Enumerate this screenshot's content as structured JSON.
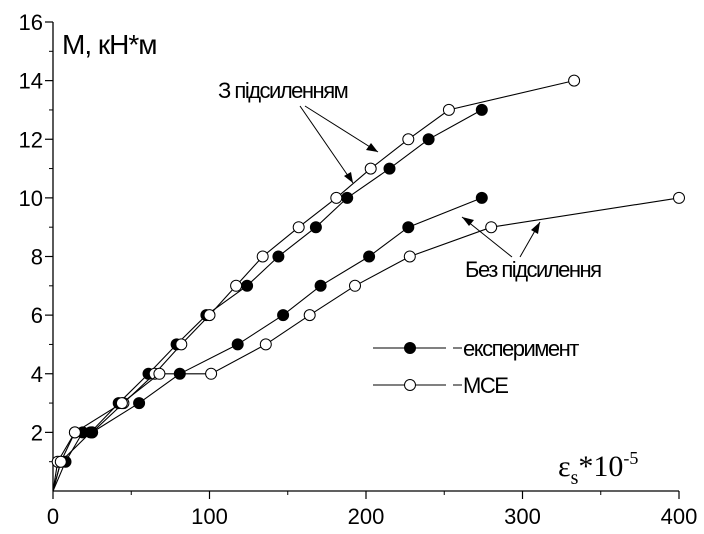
{
  "chart_data": {
    "type": "line",
    "ylabel": "M, кН*м",
    "xlabel": {
      "main": "ε",
      "sub": "s",
      "rest": "*10",
      "sup": "-5"
    },
    "xlim": [
      0,
      400
    ],
    "ylim": [
      0,
      16
    ],
    "xticks": [
      0,
      100,
      200,
      300,
      400
    ],
    "yticks": [
      2,
      4,
      6,
      8,
      10,
      12,
      14,
      16
    ],
    "grid": false,
    "legend_position": "center-right",
    "series": [
      {
        "name": "експеримент",
        "group": "З підсиленням",
        "marker": "filled",
        "points": [
          [
            5,
            1
          ],
          [
            24,
            2
          ],
          [
            42,
            3
          ],
          [
            61,
            4
          ],
          [
            79,
            5
          ],
          [
            98,
            6
          ],
          [
            124,
            7
          ],
          [
            144,
            8
          ],
          [
            168,
            9
          ],
          [
            188,
            10
          ],
          [
            215,
            11
          ],
          [
            240,
            12
          ],
          [
            274,
            13
          ]
        ]
      },
      {
        "name": "МСЕ",
        "group": "З підсиленням",
        "marker": "open",
        "points": [
          [
            3,
            1
          ],
          [
            14,
            2
          ],
          [
            25,
            2
          ],
          [
            45,
            3
          ],
          [
            65,
            4
          ],
          [
            82,
            5
          ],
          [
            100,
            6
          ],
          [
            117,
            7
          ],
          [
            134,
            8
          ],
          [
            157,
            9
          ],
          [
            181,
            10
          ],
          [
            203,
            11
          ],
          [
            227,
            12
          ],
          [
            253,
            13
          ],
          [
            333,
            14
          ]
        ]
      },
      {
        "name": "експеримент",
        "group": "Без підсилення",
        "marker": "filled",
        "points": [
          [
            8,
            1
          ],
          [
            19,
            2
          ],
          [
            25,
            2
          ],
          [
            55,
            3
          ],
          [
            81,
            4
          ],
          [
            118,
            5
          ],
          [
            147,
            6
          ],
          [
            171,
            7
          ],
          [
            202,
            8
          ],
          [
            227,
            9
          ],
          [
            274,
            10
          ]
        ]
      },
      {
        "name": "МСЕ",
        "group": "Без підсилення",
        "marker": "open",
        "points": [
          [
            5,
            1
          ],
          [
            14,
            2
          ],
          [
            44,
            3
          ],
          [
            68,
            4
          ],
          [
            101,
            4
          ],
          [
            136,
            5
          ],
          [
            164,
            6
          ],
          [
            193,
            7
          ],
          [
            228,
            8
          ],
          [
            280,
            9
          ],
          [
            400,
            10
          ]
        ]
      }
    ],
    "annotations": [
      {
        "text": "З підсиленням"
      },
      {
        "text": "Без підсилення"
      }
    ],
    "legend": [
      {
        "label": "експеримент",
        "marker": "filled"
      },
      {
        "label": "МСЕ",
        "marker": "open"
      }
    ]
  }
}
